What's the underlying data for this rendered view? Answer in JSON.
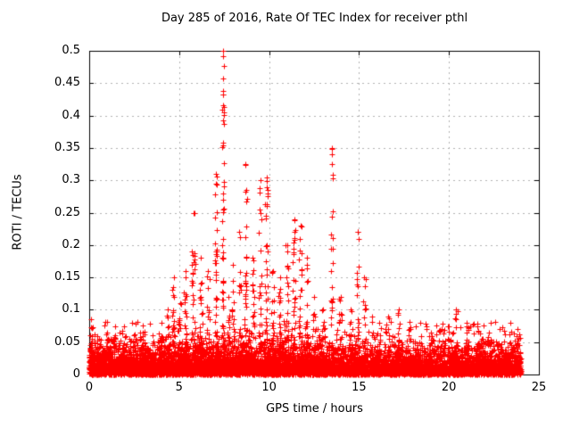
{
  "chart_data": {
    "type": "scatter",
    "title": "Day 285 of 2016, Rate Of TEC Index for receiver pthl",
    "xlabel": "GPS time / hours",
    "ylabel": "ROTI / TECUs",
    "xlim": [
      0,
      25
    ],
    "ylim": [
      0,
      0.5
    ],
    "xtick_labels": [
      "0",
      "5",
      "10",
      "15",
      "20",
      "25"
    ],
    "ytick_labels": [
      "0",
      "0.05",
      "0.1",
      "0.15",
      "0.2",
      "0.25",
      "0.3",
      "0.35",
      "0.4",
      "0.45",
      "0.5"
    ],
    "grid": true,
    "grid_color": "#b0b0b0",
    "frame_color": "#000000",
    "marker": {
      "shape": "plus",
      "color": "#ff0000",
      "size": 7
    },
    "series": [
      {
        "name": "ROTI",
        "data_extent_hours": [
          0,
          24
        ],
        "baseline_noise": {
          "distribution": "exponential",
          "mean_tecu": 0.015,
          "max_tecu": 0.085,
          "points": 8200,
          "density_profile": [
            {
              "range": [
                0,
                13
              ],
              "weight": 0.58
            },
            {
              "range": [
                13,
                24
              ],
              "weight": 0.42
            }
          ]
        },
        "spikes": [
          {
            "t": 0.1,
            "w": 0.1,
            "peak": 0.085,
            "n": 24
          },
          {
            "t": 0.55,
            "w": 0.12,
            "peak": 0.055,
            "n": 18
          },
          {
            "t": 1.0,
            "w": 0.12,
            "peak": 0.065,
            "n": 22
          },
          {
            "t": 1.45,
            "w": 0.1,
            "peak": 0.06,
            "n": 18
          },
          {
            "t": 1.95,
            "w": 0.12,
            "peak": 0.075,
            "n": 22
          },
          {
            "t": 2.5,
            "w": 0.12,
            "peak": 0.06,
            "n": 18
          },
          {
            "t": 3.0,
            "w": 0.12,
            "peak": 0.065,
            "n": 20
          },
          {
            "t": 3.5,
            "w": 0.1,
            "peak": 0.06,
            "n": 16
          },
          {
            "t": 4.0,
            "w": 0.1,
            "peak": 0.08,
            "n": 20
          },
          {
            "t": 4.35,
            "w": 0.08,
            "peak": 0.1,
            "n": 24
          },
          {
            "t": 4.7,
            "w": 0.08,
            "peak": 0.15,
            "n": 28
          },
          {
            "t": 5.05,
            "w": 0.08,
            "peak": 0.11,
            "n": 24
          },
          {
            "t": 5.35,
            "w": 0.08,
            "peak": 0.16,
            "n": 30
          },
          {
            "t": 5.8,
            "w": 0.09,
            "peak": 0.25,
            "n": 40
          },
          {
            "t": 6.2,
            "w": 0.08,
            "peak": 0.18,
            "n": 34
          },
          {
            "t": 6.6,
            "w": 0.08,
            "peak": 0.16,
            "n": 30
          },
          {
            "t": 7.05,
            "w": 0.07,
            "peak": 0.31,
            "n": 40
          },
          {
            "t": 7.45,
            "w": 0.05,
            "peak": 0.5,
            "n": 55
          },
          {
            "t": 7.75,
            "w": 0.06,
            "peak": 0.12,
            "n": 20
          },
          {
            "t": 8.0,
            "w": 0.07,
            "peak": 0.17,
            "n": 28
          },
          {
            "t": 8.35,
            "w": 0.07,
            "peak": 0.22,
            "n": 30
          },
          {
            "t": 8.7,
            "w": 0.07,
            "peak": 0.325,
            "n": 44
          },
          {
            "t": 9.1,
            "w": 0.08,
            "peak": 0.18,
            "n": 30
          },
          {
            "t": 9.5,
            "w": 0.07,
            "peak": 0.3,
            "n": 38
          },
          {
            "t": 9.85,
            "w": 0.07,
            "peak": 0.305,
            "n": 40
          },
          {
            "t": 10.2,
            "w": 0.08,
            "peak": 0.16,
            "n": 30
          },
          {
            "t": 10.6,
            "w": 0.08,
            "peak": 0.15,
            "n": 28
          },
          {
            "t": 11.0,
            "w": 0.08,
            "peak": 0.2,
            "n": 32
          },
          {
            "t": 11.4,
            "w": 0.08,
            "peak": 0.24,
            "n": 36
          },
          {
            "t": 11.75,
            "w": 0.08,
            "peak": 0.23,
            "n": 36
          },
          {
            "t": 12.1,
            "w": 0.08,
            "peak": 0.18,
            "n": 30
          },
          {
            "t": 12.5,
            "w": 0.1,
            "peak": 0.12,
            "n": 24
          },
          {
            "t": 13.0,
            "w": 0.1,
            "peak": 0.1,
            "n": 22
          },
          {
            "t": 13.5,
            "w": 0.06,
            "peak": 0.35,
            "n": 30
          },
          {
            "t": 14.0,
            "w": 0.1,
            "peak": 0.12,
            "n": 24
          },
          {
            "t": 14.55,
            "w": 0.1,
            "peak": 0.1,
            "n": 20
          },
          {
            "t": 14.95,
            "w": 0.07,
            "peak": 0.22,
            "n": 28
          },
          {
            "t": 15.3,
            "w": 0.08,
            "peak": 0.15,
            "n": 24
          },
          {
            "t": 15.7,
            "w": 0.1,
            "peak": 0.09,
            "n": 18
          },
          {
            "t": 16.1,
            "w": 0.1,
            "peak": 0.08,
            "n": 18
          },
          {
            "t": 16.6,
            "w": 0.1,
            "peak": 0.09,
            "n": 18
          },
          {
            "t": 17.2,
            "w": 0.1,
            "peak": 0.1,
            "n": 20
          },
          {
            "t": 17.8,
            "w": 0.12,
            "peak": 0.07,
            "n": 16
          },
          {
            "t": 18.4,
            "w": 0.12,
            "peak": 0.08,
            "n": 16
          },
          {
            "t": 19.0,
            "w": 0.12,
            "peak": 0.065,
            "n": 14
          },
          {
            "t": 19.6,
            "w": 0.12,
            "peak": 0.07,
            "n": 14
          },
          {
            "t": 20.0,
            "w": 0.1,
            "peak": 0.075,
            "n": 16
          },
          {
            "t": 20.4,
            "w": 0.1,
            "peak": 0.1,
            "n": 18
          },
          {
            "t": 21.0,
            "w": 0.12,
            "peak": 0.08,
            "n": 16
          },
          {
            "t": 21.6,
            "w": 0.12,
            "peak": 0.075,
            "n": 16
          },
          {
            "t": 22.2,
            "w": 0.12,
            "peak": 0.065,
            "n": 14
          },
          {
            "t": 22.8,
            "w": 0.12,
            "peak": 0.07,
            "n": 14
          },
          {
            "t": 23.4,
            "w": 0.1,
            "peak": 0.08,
            "n": 18
          },
          {
            "t": 23.8,
            "w": 0.08,
            "peak": 0.07,
            "n": 16
          }
        ]
      }
    ]
  }
}
